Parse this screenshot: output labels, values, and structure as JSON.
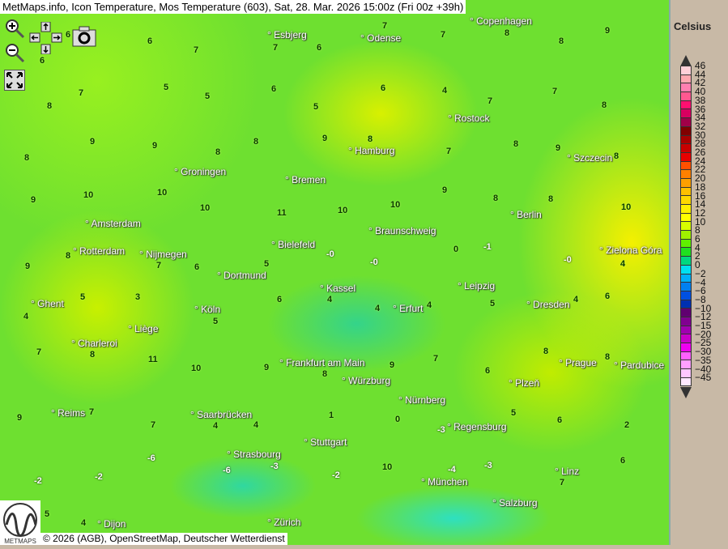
{
  "title": "MetMaps.info, Icon Temperature, Mos Temperature (603), Sat, 28. Mar. 2026 15:00z (Fri 00z +39h)",
  "copyright": "© 2026 (AGB), OpenStreetMap, Deutscher Wetterdienst",
  "logo_text": "METMAPS",
  "controls": {
    "zoom_in": "zoom-in-icon",
    "zoom_out": "zoom-out-icon",
    "pan": "pan-arrows-icon",
    "screenshot": "camera-icon",
    "fullscreen": "fullscreen-icon"
  },
  "legend": {
    "unit": "Celsius",
    "labels": [
      "46",
      "44",
      "42",
      "40",
      "38",
      "36",
      "34",
      "32",
      "30",
      "28",
      "26",
      "24",
      "22",
      "20",
      "18",
      "16",
      "14",
      "12",
      "10",
      "8",
      "6",
      "4",
      "2",
      "0",
      "−2",
      "−4",
      "−6",
      "−8",
      "−10",
      "−12",
      "−15",
      "−20",
      "−25",
      "−30",
      "−35",
      "−40",
      "−45"
    ],
    "colors": [
      "#ffd0d8",
      "#ffa8b0",
      "#ff80b0",
      "#ff5890",
      "#ff1070",
      "#d80060",
      "#a00048",
      "#800000",
      "#a80000",
      "#c80000",
      "#e80000",
      "#ff5000",
      "#ff8000",
      "#ffa000",
      "#ffc000",
      "#ffd800",
      "#fff000",
      "#ffff00",
      "#d8ff00",
      "#a0f000",
      "#60f000",
      "#20e020",
      "#00d880",
      "#00e0f0",
      "#00b0f8",
      "#0080f0",
      "#0050e0",
      "#0030b0",
      "#600070",
      "#800090",
      "#a000b0",
      "#c800c8",
      "#f000f0",
      "#ff60ff",
      "#ffa0ff",
      "#ffc8ff",
      "#ffe8ff"
    ]
  },
  "cities": [
    "Esbjerg",
    "Odense",
    "Copenhagen",
    "Rostock",
    "Hamburg",
    "Szczecin",
    "Groningen",
    "Bremen",
    "Amsterdam",
    "Berlin",
    "Braunschweig",
    "Rotterdam",
    "Nijmegen",
    "Bielefeld",
    "Zielona Góra",
    "Dortmund",
    "Kassel",
    "Leipzig",
    "Ghent",
    "Köln",
    "Erfurt",
    "Dresden",
    "Liège",
    "Charleroi",
    "Frankfurt am Main",
    "Prague",
    "Pardubice",
    "Würzburg",
    "Plzeň",
    "Nürnberg",
    "Reims",
    "Saarbrücken",
    "Regensburg",
    "Stuttgart",
    "Strasbourg",
    "Linz",
    "München",
    "Salzburg",
    "Zürich",
    "Dijon"
  ],
  "stations": [
    "6",
    "6",
    "6",
    "7",
    "7",
    "6",
    "7",
    "7",
    "8",
    "8",
    "9",
    "8",
    "7",
    "5",
    "5",
    "6",
    "5",
    "6",
    "4",
    "7",
    "7",
    "8",
    "8",
    "9",
    "9",
    "8",
    "8",
    "9",
    "8",
    "7",
    "8",
    "9",
    "8",
    "9",
    "10",
    "10",
    "10",
    "11",
    "10",
    "10",
    "9",
    "8",
    "8",
    "10",
    "9",
    "8",
    "7",
    "6",
    "5",
    "-0",
    "-0",
    "0",
    "-1",
    "-0",
    "4",
    "4",
    "5",
    "3",
    "5",
    "6",
    "4",
    "4",
    "4",
    "5",
    "4",
    "6",
    "7",
    "8",
    "11",
    "10",
    "9",
    "8",
    "9",
    "7",
    "6",
    "8",
    "8",
    "9",
    "7",
    "7",
    "4",
    "4",
    "1",
    "0",
    "-3",
    "5",
    "6",
    "2",
    "-2",
    "-2",
    "-6",
    "-6",
    "-3",
    "-2",
    "10",
    "-4",
    "-3",
    "7",
    "6",
    "5",
    "4"
  ]
}
